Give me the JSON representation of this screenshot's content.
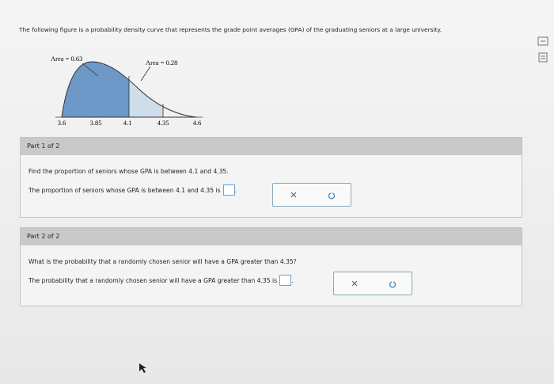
{
  "header": {
    "text": "The following figure is a probability density curve that represents the grade point averages (GPA) of the graduating seniors at a large university."
  },
  "figure": {
    "area_labels": [
      "Area = 0.63",
      "Area = 0.28"
    ],
    "axis_labels": [
      "3.6",
      "3.85",
      "4.1",
      "4.35",
      "4.6"
    ]
  },
  "parts": [
    {
      "title": "Part 1 of 2",
      "question": "Find the proportion of seniors whose GPA is between 4.1 and 4.35.",
      "answer_prompt": "The proportion of seniors whose GPA is between 4.1 and 4.35 is",
      "answer_end": "."
    },
    {
      "title": "Part 2 of 2",
      "question": "What is the probability that a randomly chosen senior will have a GPA greater than 4.35?",
      "answer_prompt": "The probability that a randomly chosen senior will have a GPA greater than 4.35 is",
      "answer_end": "."
    }
  ]
}
